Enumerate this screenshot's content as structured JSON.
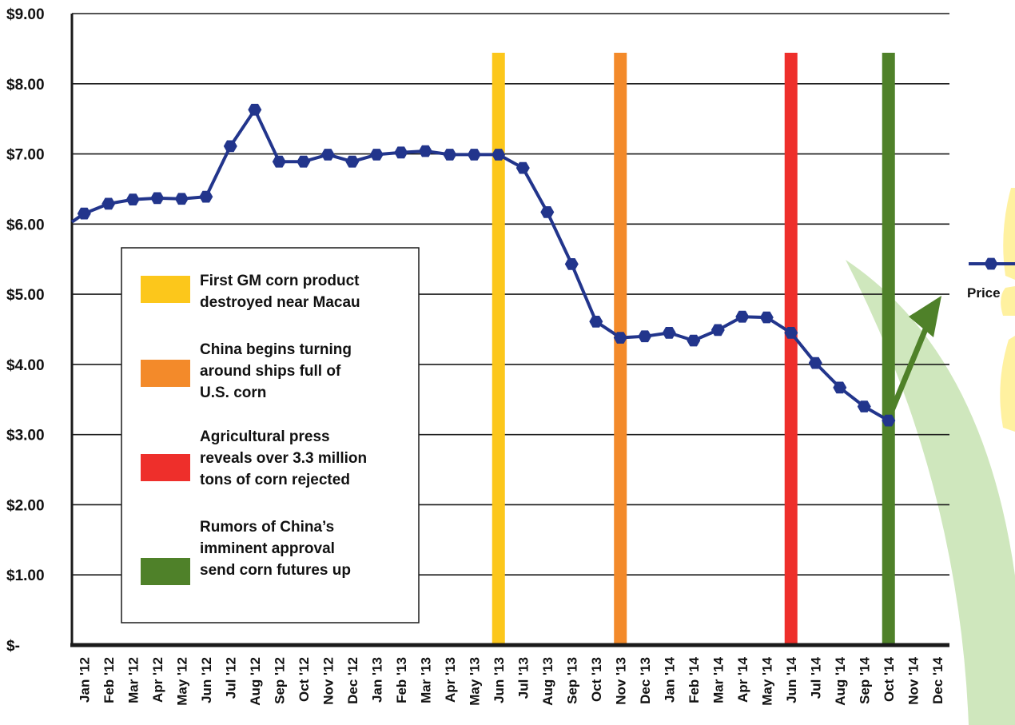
{
  "chart_data": {
    "type": "line",
    "ylabel": "",
    "xlabel": "",
    "ylim": [
      0,
      9
    ],
    "y_ticks": [
      "$-",
      "$1.00",
      "$2.00",
      "$3.00",
      "$4.00",
      "$5.00",
      "$6.00",
      "$7.00",
      "$8.00",
      "$9.00"
    ],
    "categories": [
      "Jan '12",
      "Feb '12",
      "Mar '12",
      "Apr '12",
      "May '12",
      "Jun '12",
      "Jul '12",
      "Aug '12",
      "Sep '12",
      "Oct '12",
      "Nov '12",
      "Dec '12",
      "Jan '13",
      "Feb '13",
      "Mar '13",
      "Apr '13",
      "May '13",
      "Jun '13",
      "Jul '13",
      "Aug '13",
      "Sep '13",
      "Oct '13",
      "Nov '13",
      "Dec '13",
      "Jan '14",
      "Feb '14",
      "Mar '14",
      "Apr '14",
      "May '14",
      "Jun '14",
      "Jul '14",
      "Aug '14",
      "Sep '14",
      "Oct '14",
      "Nov '14",
      "Dec '14"
    ],
    "series": [
      {
        "name": "Price",
        "color": "#22358c",
        "values": [
          6.15,
          6.29,
          6.35,
          6.37,
          6.36,
          6.39,
          7.11,
          7.63,
          6.89,
          6.89,
          6.99,
          6.89,
          6.99,
          7.02,
          7.04,
          6.99,
          6.99,
          6.99,
          6.8,
          6.17,
          5.43,
          4.61,
          4.38,
          4.4,
          4.45,
          4.34,
          4.49,
          4.68,
          4.67,
          4.45,
          4.02,
          3.67,
          3.4,
          3.2,
          null,
          null
        ]
      }
    ],
    "events": [
      {
        "month": "Jun '13",
        "color": "#fcc71b",
        "label": "First GM corn product destroyed near Macau"
      },
      {
        "month": "Nov '13",
        "color": "#f38a2a",
        "label": "China begins turning around ships full of U.S. corn"
      },
      {
        "month": "Jun '14",
        "color": "#ee2f2b",
        "label": "Agricultural press reveals over 3.3 million tons of corn rejected"
      },
      {
        "month": "Oct '14",
        "color": "#4f8129",
        "label": "Rumors of China’s imminent approval send corn futures up"
      }
    ],
    "legend": {
      "placement": "left-center",
      "items": [
        {
          "color": "#fcc71b",
          "lines": [
            "First GM corn product",
            "destroyed near Macau"
          ]
        },
        {
          "color": "#f38a2a",
          "lines": [
            "China begins turning",
            "around ships full of",
            "U.S. corn"
          ]
        },
        {
          "color": "#ee2f2b",
          "lines": [
            "Agricultural press",
            "reveals over 3.3 million",
            "tons of corn rejected"
          ]
        },
        {
          "color": "#4f8129",
          "lines": [
            "Rumors of China’s",
            "imminent approval",
            "send corn futures up"
          ]
        }
      ]
    },
    "series_legend": {
      "label": "Price",
      "placement": "right"
    },
    "trend_arrow": {
      "color": "#4f8129",
      "direction": "up"
    },
    "grid": true
  }
}
